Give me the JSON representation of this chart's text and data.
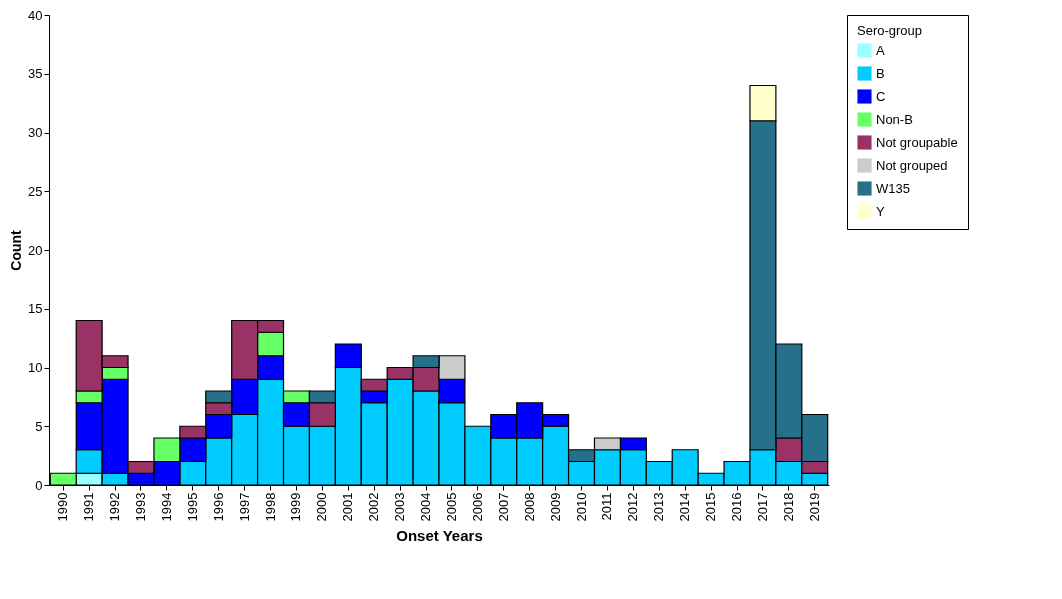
{
  "chart_data": {
    "type": "bar",
    "stacked": true,
    "xlabel": "Onset Years",
    "ylabel": "Count",
    "legend_title": "Sero-group",
    "legend": "right",
    "grid": false,
    "categories": [
      "1990",
      "1991",
      "1992",
      "1993",
      "1994",
      "1995",
      "1996",
      "1997",
      "1998",
      "1999",
      "2000",
      "2001",
      "2002",
      "2003",
      "2004",
      "2005",
      "2006",
      "2007",
      "2008",
      "2009",
      "2010",
      "2011",
      "2012",
      "2013",
      "2014",
      "2015",
      "2016",
      "2017",
      "2018",
      "2019"
    ],
    "ylim": [
      0,
      40
    ],
    "yticks": [
      0,
      5,
      10,
      15,
      20,
      25,
      30,
      35,
      40
    ],
    "series": [
      {
        "name": "A",
        "color": "#99ffff",
        "values": [
          0,
          1,
          0,
          0,
          0,
          0,
          0,
          0,
          0,
          0,
          0,
          0,
          0,
          0,
          0,
          0,
          0,
          0,
          0,
          0,
          0,
          0,
          0,
          0,
          0,
          0,
          0,
          0,
          0,
          0
        ]
      },
      {
        "name": "B",
        "color": "#00ccff",
        "values": [
          0,
          2,
          1,
          0,
          0,
          2,
          4,
          6,
          9,
          5,
          5,
          10,
          7,
          9,
          8,
          7,
          5,
          4,
          4,
          5,
          2,
          3,
          3,
          2,
          3,
          1,
          2,
          3,
          2,
          1
        ]
      },
      {
        "name": "C",
        "color": "#0000ff",
        "values": [
          0,
          4,
          8,
          1,
          2,
          2,
          2,
          3,
          2,
          2,
          0,
          2,
          1,
          0,
          0,
          2,
          0,
          2,
          3,
          1,
          0,
          0,
          1,
          0,
          0,
          0,
          0,
          0,
          0,
          0
        ]
      },
      {
        "name": "Non-B",
        "color": "#66ff66",
        "values": [
          1,
          1,
          1,
          0,
          2,
          0,
          0,
          0,
          2,
          1,
          0,
          0,
          0,
          0,
          0,
          0,
          0,
          0,
          0,
          0,
          0,
          0,
          0,
          0,
          0,
          0,
          0,
          0,
          0,
          0
        ]
      },
      {
        "name": "Not groupable",
        "color": "#993366",
        "values": [
          0,
          6,
          1,
          1,
          0,
          1,
          1,
          5,
          1,
          0,
          2,
          0,
          1,
          1,
          2,
          0,
          0,
          0,
          0,
          0,
          0,
          0,
          0,
          0,
          0,
          0,
          0,
          0,
          2,
          1
        ]
      },
      {
        "name": "Not grouped",
        "color": "#cccccc",
        "values": [
          0,
          0,
          0,
          0,
          0,
          0,
          0,
          0,
          0,
          0,
          0,
          0,
          0,
          0,
          0,
          2,
          0,
          0,
          0,
          0,
          0,
          1,
          0,
          0,
          0,
          0,
          0,
          0,
          0,
          0
        ]
      },
      {
        "name": "W135",
        "color": "#267189",
        "values": [
          0,
          0,
          0,
          0,
          0,
          0,
          1,
          0,
          0,
          0,
          1,
          0,
          0,
          0,
          1,
          0,
          0,
          0,
          0,
          0,
          1,
          0,
          0,
          0,
          0,
          0,
          0,
          28,
          8,
          4
        ]
      },
      {
        "name": "Y",
        "color": "#ffffcc",
        "values": [
          0,
          0,
          0,
          0,
          0,
          0,
          0,
          0,
          0,
          0,
          0,
          0,
          0,
          0,
          0,
          0,
          0,
          0,
          0,
          0,
          0,
          0,
          0,
          0,
          0,
          0,
          0,
          3,
          0,
          0
        ]
      }
    ]
  }
}
